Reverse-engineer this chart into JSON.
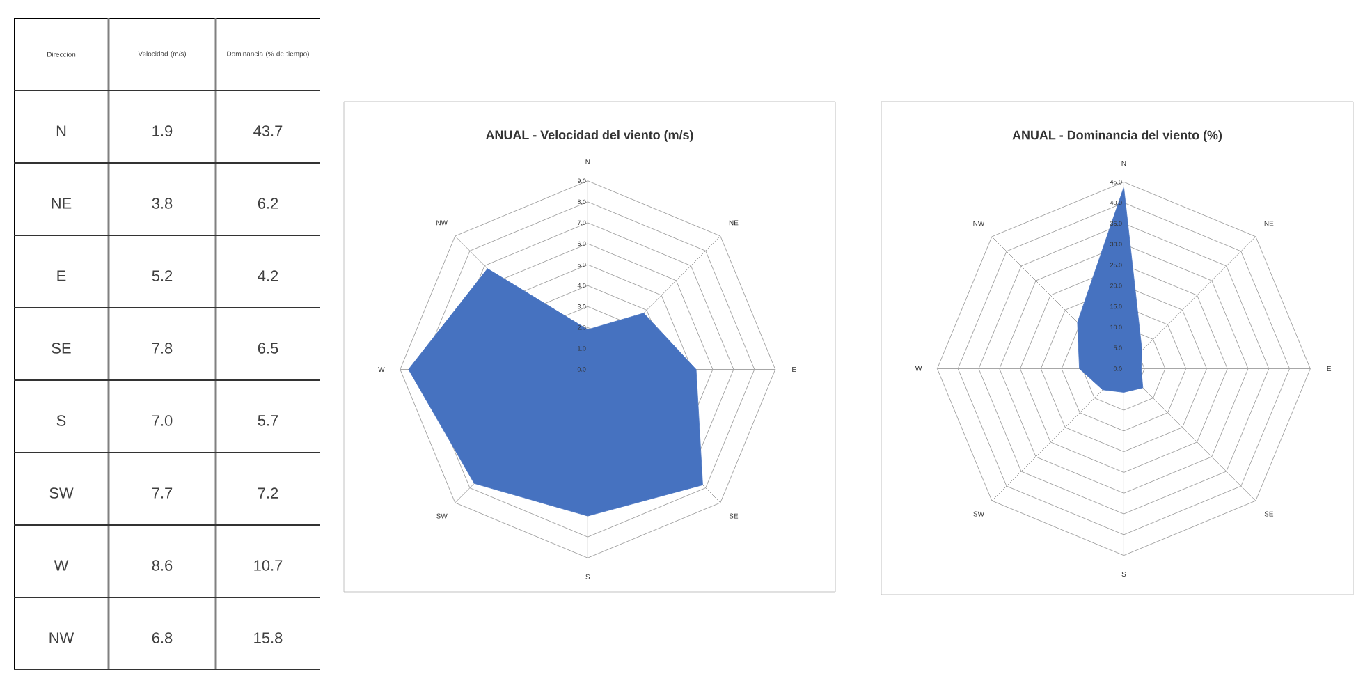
{
  "chart_data": [
    {
      "type": "other",
      "xlabel": "Direccion",
      "categories": [
        "N",
        "NE",
        "E",
        "SE",
        "S",
        "SW",
        "W",
        "NW"
      ],
      "series": [
        {
          "name": "Velocidad (m/s)",
          "values": [
            1.9,
            3.8,
            5.2,
            7.8,
            7.0,
            7.7,
            8.6,
            6.8
          ],
          "value_labels": [
            "1.9",
            "3.8",
            "5.2",
            "7.8",
            "7.0",
            "7.7",
            "8.6",
            "6.8"
          ]
        },
        {
          "name": "Dominancia (% de tiempo)",
          "values": [
            43.7,
            6.2,
            4.2,
            6.5,
            5.7,
            7.2,
            10.7,
            15.8
          ],
          "value_labels": [
            "43.7",
            "6.2",
            "4.2",
            "6.5",
            "5.7",
            "7.2",
            "10.7",
            "15.8"
          ]
        }
      ]
    },
    {
      "type": "radar",
      "title": "ANUAL - Velocidad del viento (m/s)",
      "categories": [
        "N",
        "NE",
        "E",
        "SE",
        "S",
        "SW",
        "W",
        "NW"
      ],
      "series": [
        {
          "color": "#4672c0",
          "values": [
            1.9,
            3.8,
            5.2,
            7.8,
            7.0,
            7.7,
            8.6,
            6.8
          ]
        }
      ],
      "ylim": [
        0,
        9
      ],
      "grid": true,
      "yticks": [
        {
          "value": 0,
          "label": "0.0"
        },
        {
          "value": 1,
          "label": "1.0"
        },
        {
          "value": 2,
          "label": "2.0"
        },
        {
          "value": 3,
          "label": "3.0"
        },
        {
          "value": 4,
          "label": "4.0"
        },
        {
          "value": 5,
          "label": "5.0"
        },
        {
          "value": 6,
          "label": "6.0"
        },
        {
          "value": 7,
          "label": "7.0"
        },
        {
          "value": 8,
          "label": "8.0"
        },
        {
          "value": 9,
          "label": "9.0"
        }
      ]
    },
    {
      "type": "radar",
      "title": "ANUAL - Dominancia del viento (%)",
      "categories": [
        "N",
        "NE",
        "E",
        "SE",
        "S",
        "SW",
        "W",
        "NW"
      ],
      "series": [
        {
          "color": "#4672c0",
          "values": [
            43.7,
            6.2,
            4.2,
            6.5,
            5.7,
            7.2,
            10.7,
            15.8
          ]
        }
      ],
      "ylim": [
        0,
        45
      ],
      "grid": true,
      "yticks": [
        {
          "value": 0,
          "label": "0.0"
        },
        {
          "value": 5,
          "label": "5.0"
        },
        {
          "value": 10,
          "label": "10.0"
        },
        {
          "value": 15,
          "label": "15.0"
        },
        {
          "value": 20,
          "label": "20.0"
        },
        {
          "value": 25,
          "label": "25.0"
        },
        {
          "value": 30,
          "label": "30.0"
        },
        {
          "value": 35,
          "label": "35.0"
        },
        {
          "value": 40,
          "label": "40.0"
        },
        {
          "value": 45,
          "label": "45.0"
        }
      ]
    }
  ]
}
